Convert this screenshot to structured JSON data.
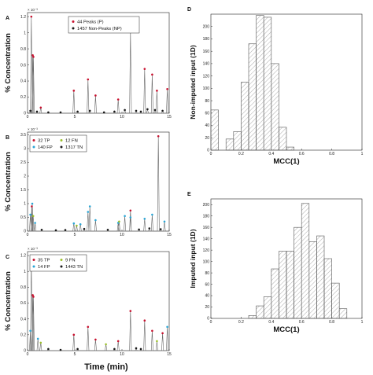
{
  "figure": {
    "colors": {
      "peak": "#c8102e",
      "nonpeak": "#1a1a1a",
      "tp": "#c8102e",
      "fp": "#2aa6d6",
      "fn": "#9bbf2a",
      "tn": "#1a1a1a",
      "trace": "#6a6a6a",
      "hist_edge": "#555555",
      "hist_hatch": "#8a8a8a"
    },
    "common_xlabel": "Time (min)"
  },
  "chart_data": [
    {
      "id": "A",
      "panel_label": "A",
      "type": "line",
      "ylabel": "% Concentration",
      "y_exponent": "× 10⁻³",
      "xlim": [
        0,
        15
      ],
      "ylim": [
        0,
        1.25
      ],
      "x_ticks": [
        "0",
        "5",
        "10",
        "15"
      ],
      "y_ticks": [
        "0",
        "0.2",
        "0.4",
        "0.6",
        "0.8",
        "1",
        "1.2"
      ],
      "legend": [
        "44 Peaks (P)",
        "1457 Non-Peaks (NP)"
      ],
      "legend_position": "top-center",
      "peaks_x": [
        0.4,
        0.55,
        0.62,
        1.4,
        4.9,
        6.4,
        7.2,
        9.6,
        10.9,
        12.4,
        13.2,
        13.7,
        14.8
      ],
      "peaks_y": [
        1.2,
        0.72,
        0.7,
        0.07,
        0.28,
        0.42,
        0.22,
        0.17,
        1.02,
        0.55,
        0.48,
        0.28,
        0.3
      ],
      "nonpeaks_x": [
        0.3,
        1.0,
        2.2,
        3.5,
        5.3,
        6.6,
        8.1,
        9.2,
        10.3,
        11.5,
        12.0,
        12.7,
        13.5,
        14.3
      ],
      "nonpeaks_y": [
        0.03,
        0.02,
        0.01,
        0.01,
        0.02,
        0.03,
        0.01,
        0.02,
        0.04,
        0.03,
        0.02,
        0.05,
        0.04,
        0.03
      ]
    },
    {
      "id": "B",
      "panel_label": "B",
      "type": "line",
      "ylabel": "% Concentration",
      "y_exponent": "× 10⁻³",
      "xlim": [
        0,
        15
      ],
      "ylim": [
        0,
        3.6
      ],
      "x_ticks": [
        "0",
        "5",
        "10",
        "15"
      ],
      "y_ticks": [
        "0",
        "0.5",
        "1",
        "1.5",
        "2",
        "2.5",
        "3",
        "3.5"
      ],
      "legend": [
        "32 TP",
        "12 FN",
        "140 FP",
        "1317 TN"
      ],
      "legend_position": "top-left",
      "tp_x": [
        0.45,
        13.85,
        10.9
      ],
      "tp_y": [
        0.9,
        3.45,
        0.75
      ],
      "fn_x": [
        0.6,
        5.2,
        9.7
      ],
      "fn_y": [
        0.55,
        0.2,
        0.35
      ],
      "fp_x": [
        0.3,
        0.5,
        0.8,
        4.9,
        5.6,
        6.4,
        6.6,
        7.2,
        9.6,
        10.3,
        10.9,
        12.4,
        13.2,
        14.5
      ],
      "fp_y": [
        0.6,
        1.0,
        0.3,
        0.28,
        0.25,
        0.7,
        0.9,
        0.4,
        0.3,
        0.55,
        0.5,
        0.45,
        0.6,
        0.35
      ],
      "tn_x": [
        1.5,
        3.0,
        4.0,
        6.0,
        8.5,
        11.8,
        12.9,
        14.1
      ],
      "tn_y": [
        0.05,
        0.03,
        0.04,
        0.08,
        0.05,
        0.06,
        0.1,
        0.07
      ]
    },
    {
      "id": "C",
      "panel_label": "C",
      "type": "line",
      "ylabel": "% Concentration",
      "y_exponent": "× 10⁻³",
      "xlim": [
        0,
        15
      ],
      "ylim": [
        0,
        1.25
      ],
      "x_ticks": [
        "0",
        "5",
        "10",
        "15"
      ],
      "y_ticks": [
        "0",
        "0.2",
        "0.4",
        "0.6",
        "0.8",
        "1",
        "1.2"
      ],
      "legend": [
        "35 TP",
        "9 FN",
        "14 FP",
        "1443 TN"
      ],
      "legend_position": "top-left",
      "xlabel": "Time (min)",
      "tp_x": [
        0.4,
        0.55,
        0.62,
        4.9,
        6.4,
        7.2,
        9.6,
        10.9,
        12.4,
        13.2,
        14.3
      ],
      "tp_y": [
        1.15,
        0.7,
        0.68,
        0.2,
        0.3,
        0.14,
        0.12,
        0.5,
        0.38,
        0.25,
        0.22
      ],
      "fn_x": [
        1.4,
        8.3,
        13.7
      ],
      "fn_y": [
        0.1,
        0.08,
        0.12
      ],
      "fp_x": [
        0.3,
        1.1,
        14.8
      ],
      "fp_y": [
        0.25,
        0.15,
        0.3
      ],
      "tn_x": [
        2.2,
        3.5,
        5.3,
        9.2,
        11.5,
        12.0
      ],
      "tn_y": [
        0.02,
        0.01,
        0.02,
        0.02,
        0.03,
        0.02
      ]
    },
    {
      "id": "D",
      "panel_label": "D",
      "type": "bar",
      "ylabel": "Non-imputed input (1D)",
      "xlabel": "MCC(1)",
      "xlim": [
        0,
        1
      ],
      "ylim": [
        0,
        220
      ],
      "x_ticks": [
        "0",
        "0.2",
        "0.4",
        "0.6",
        "0.8",
        "1"
      ],
      "y_ticks": [
        "0",
        "20",
        "40",
        "60",
        "80",
        "100",
        "120",
        "140",
        "160",
        "180",
        "200"
      ],
      "bin_edges": [
        0.0,
        0.05,
        0.1,
        0.15,
        0.2,
        0.25,
        0.3,
        0.35,
        0.4,
        0.45,
        0.5,
        0.55
      ],
      "values": [
        65,
        0,
        18,
        30,
        110,
        172,
        218,
        215,
        140,
        37,
        5
      ]
    },
    {
      "id": "E",
      "panel_label": "E",
      "type": "bar",
      "ylabel": "Imputed input (1D)",
      "xlabel": "MCC(1)",
      "xlim": [
        0,
        1
      ],
      "ylim": [
        0,
        210
      ],
      "x_ticks": [
        "0",
        "0.2",
        "0.4",
        "0.6",
        "0.8",
        "1"
      ],
      "y_ticks": [
        "0",
        "20",
        "40",
        "60",
        "80",
        "100",
        "120",
        "140",
        "160",
        "180",
        "200"
      ],
      "bin_edges": [
        0.25,
        0.3,
        0.35,
        0.4,
        0.45,
        0.5,
        0.55,
        0.6,
        0.65,
        0.7,
        0.75,
        0.8,
        0.85,
        0.9
      ],
      "values": [
        5,
        22,
        38,
        87,
        118,
        118,
        160,
        202,
        135,
        145,
        105,
        62,
        17
      ]
    }
  ]
}
